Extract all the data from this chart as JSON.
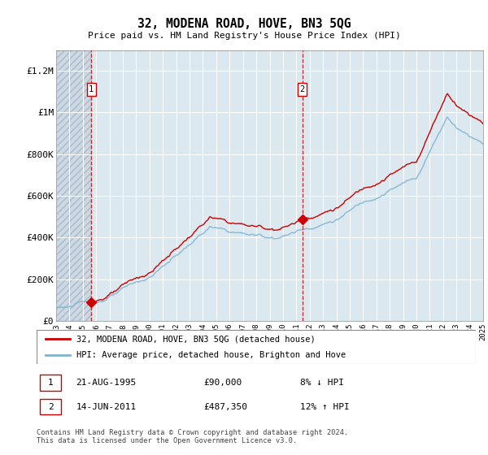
{
  "title": "32, MODENA ROAD, HOVE, BN3 5QG",
  "subtitle": "Price paid vs. HM Land Registry's House Price Index (HPI)",
  "x_start_year": 1993,
  "x_end_year": 2025,
  "ylim": [
    0,
    1300000
  ],
  "yticks": [
    0,
    200000,
    400000,
    600000,
    800000,
    1000000,
    1200000
  ],
  "ytick_labels": [
    "£0",
    "£200K",
    "£400K",
    "£600K",
    "£800K",
    "£1M",
    "£1.2M"
  ],
  "purchase_year_1": 1995.638,
  "purchase_year_2": 2011.452,
  "purchase_price_1": 90000,
  "purchase_price_2": 487350,
  "purchase_labels": [
    "1",
    "2"
  ],
  "legend_line1": "32, MODENA ROAD, HOVE, BN3 5QG (detached house)",
  "legend_line2": "HPI: Average price, detached house, Brighton and Hove",
  "table_rows": [
    {
      "label": "1",
      "date": "21-AUG-1995",
      "price": "£90,000",
      "hpi": "8% ↓ HPI"
    },
    {
      "label": "2",
      "date": "14-JUN-2011",
      "price": "£487,350",
      "hpi": "12% ↑ HPI"
    }
  ],
  "footnote": "Contains HM Land Registry data © Crown copyright and database right 2024.\nThis data is licensed under the Open Government Licence v3.0.",
  "line_color_price": "#cc0000",
  "line_color_hpi": "#7fb3d3",
  "marker_color": "#cc0000",
  "dashed_line_color": "#cc0000",
  "bg_color": "#dce8f0",
  "hatch_bg_color": "#ccd8e4",
  "grid_color": "#ffffff"
}
